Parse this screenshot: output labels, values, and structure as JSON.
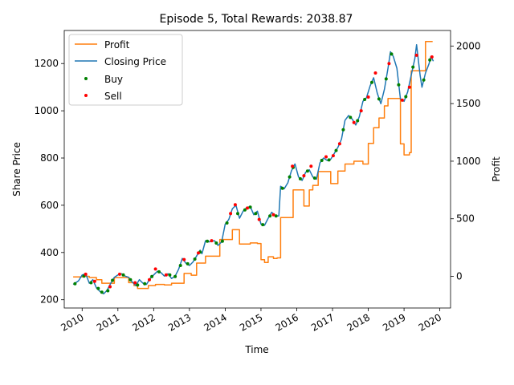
{
  "chart_data": {
    "type": "line",
    "title": "Episode 5, Total Rewards: 2038.87",
    "xlabel": "Time",
    "ylabel_left": "Share Price",
    "ylabel_right": "Profit",
    "xlim": [
      2009.5,
      2020.3
    ],
    "ylim_left": [
      165,
      1340
    ],
    "ylim_right": [
      -275,
      2135
    ],
    "x_ticks": [
      2010,
      2011,
      2012,
      2013,
      2014,
      2015,
      2016,
      2017,
      2018,
      2019,
      2020
    ],
    "x_tick_labels": [
      "2010",
      "2011",
      "2012",
      "2013",
      "2014",
      "2015",
      "2016",
      "2017",
      "2018",
      "2019",
      "2020"
    ],
    "y_ticks_left": [
      200,
      400,
      600,
      800,
      1000,
      1200
    ],
    "y_tick_labels_left": [
      "200",
      "400",
      "600",
      "800",
      "1000",
      "1200"
    ],
    "y_ticks_right": [
      0,
      500,
      1000,
      1500,
      2000
    ],
    "y_tick_labels_right": [
      "0",
      "500",
      "1000",
      "1500",
      "2000"
    ],
    "grid": false,
    "legend_position": "top-left",
    "series": [
      {
        "name": "Profit",
        "axis": "right",
        "color": "#ff7f0e",
        "step": true,
        "points": [
          [
            2009.75,
            -5
          ],
          [
            2010.0,
            0
          ],
          [
            2010.2,
            -10
          ],
          [
            2010.4,
            -30
          ],
          [
            2010.55,
            -60
          ],
          [
            2010.75,
            -60
          ],
          [
            2010.9,
            -10
          ],
          [
            2011.1,
            -10
          ],
          [
            2011.3,
            -55
          ],
          [
            2011.45,
            -80
          ],
          [
            2011.55,
            -105
          ],
          [
            2011.75,
            -105
          ],
          [
            2011.85,
            -80
          ],
          [
            2012.05,
            -70
          ],
          [
            2012.3,
            -75
          ],
          [
            2012.5,
            -60
          ],
          [
            2012.7,
            -60
          ],
          [
            2012.85,
            25
          ],
          [
            2013.05,
            10
          ],
          [
            2013.2,
            115
          ],
          [
            2013.35,
            115
          ],
          [
            2013.45,
            175
          ],
          [
            2013.7,
            175
          ],
          [
            2013.85,
            320
          ],
          [
            2014.05,
            320
          ],
          [
            2014.2,
            405
          ],
          [
            2014.3,
            405
          ],
          [
            2014.4,
            280
          ],
          [
            2014.6,
            280
          ],
          [
            2014.7,
            290
          ],
          [
            2014.9,
            285
          ],
          [
            2015.0,
            145
          ],
          [
            2015.1,
            120
          ],
          [
            2015.2,
            170
          ],
          [
            2015.35,
            155
          ],
          [
            2015.45,
            160
          ],
          [
            2015.55,
            510
          ],
          [
            2015.85,
            510
          ],
          [
            2015.9,
            750
          ],
          [
            2016.1,
            750
          ],
          [
            2016.2,
            610
          ],
          [
            2016.35,
            750
          ],
          [
            2016.45,
            790
          ],
          [
            2016.6,
            910
          ],
          [
            2016.85,
            910
          ],
          [
            2016.95,
            805
          ],
          [
            2017.15,
            915
          ],
          [
            2017.35,
            975
          ],
          [
            2017.6,
            1000
          ],
          [
            2017.85,
            975
          ],
          [
            2018.0,
            1155
          ],
          [
            2018.15,
            1290
          ],
          [
            2018.3,
            1375
          ],
          [
            2018.45,
            1480
          ],
          [
            2018.55,
            1545
          ],
          [
            2018.85,
            1545
          ],
          [
            2018.9,
            1150
          ],
          [
            2019.0,
            1055
          ],
          [
            2019.15,
            1075
          ],
          [
            2019.2,
            1785
          ],
          [
            2019.45,
            1785
          ],
          [
            2019.6,
            2038.87
          ],
          [
            2019.8,
            2038.87
          ]
        ]
      },
      {
        "name": "Closing Price",
        "axis": "left",
        "color": "#1f77b4",
        "points": [
          [
            2009.75,
            265
          ],
          [
            2009.9,
            280
          ],
          [
            2010.0,
            305
          ],
          [
            2010.1,
            310
          ],
          [
            2010.2,
            270
          ],
          [
            2010.3,
            285
          ],
          [
            2010.4,
            250
          ],
          [
            2010.5,
            235
          ],
          [
            2010.6,
            225
          ],
          [
            2010.7,
            240
          ],
          [
            2010.8,
            270
          ],
          [
            2010.9,
            295
          ],
          [
            2011.0,
            305
          ],
          [
            2011.1,
            310
          ],
          [
            2011.2,
            300
          ],
          [
            2011.3,
            295
          ],
          [
            2011.4,
            275
          ],
          [
            2011.5,
            260
          ],
          [
            2011.6,
            285
          ],
          [
            2011.7,
            270
          ],
          [
            2011.8,
            265
          ],
          [
            2011.9,
            290
          ],
          [
            2012.0,
            305
          ],
          [
            2012.1,
            320
          ],
          [
            2012.2,
            315
          ],
          [
            2012.3,
            300
          ],
          [
            2012.4,
            310
          ],
          [
            2012.5,
            290
          ],
          [
            2012.6,
            300
          ],
          [
            2012.7,
            330
          ],
          [
            2012.8,
            375
          ],
          [
            2012.9,
            355
          ],
          [
            2013.0,
            345
          ],
          [
            2013.1,
            360
          ],
          [
            2013.2,
            385
          ],
          [
            2013.3,
            410
          ],
          [
            2013.35,
            395
          ],
          [
            2013.45,
            450
          ],
          [
            2013.55,
            445
          ],
          [
            2013.7,
            450
          ],
          [
            2013.8,
            430
          ],
          [
            2013.9,
            445
          ],
          [
            2014.0,
            520
          ],
          [
            2014.1,
            540
          ],
          [
            2014.2,
            585
          ],
          [
            2014.3,
            600
          ],
          [
            2014.4,
            545
          ],
          [
            2014.5,
            575
          ],
          [
            2014.6,
            590
          ],
          [
            2014.7,
            595
          ],
          [
            2014.8,
            560
          ],
          [
            2014.9,
            575
          ],
          [
            2015.0,
            520
          ],
          [
            2015.1,
            515
          ],
          [
            2015.2,
            545
          ],
          [
            2015.3,
            570
          ],
          [
            2015.4,
            555
          ],
          [
            2015.5,
            555
          ],
          [
            2015.55,
            680
          ],
          [
            2015.65,
            670
          ],
          [
            2015.75,
            695
          ],
          [
            2015.85,
            745
          ],
          [
            2015.95,
            775
          ],
          [
            2016.05,
            720
          ],
          [
            2016.15,
            705
          ],
          [
            2016.25,
            740
          ],
          [
            2016.35,
            750
          ],
          [
            2016.45,
            720
          ],
          [
            2016.55,
            710
          ],
          [
            2016.65,
            780
          ],
          [
            2016.75,
            800
          ],
          [
            2016.85,
            790
          ],
          [
            2016.95,
            795
          ],
          [
            2017.05,
            820
          ],
          [
            2017.15,
            845
          ],
          [
            2017.25,
            880
          ],
          [
            2017.35,
            960
          ],
          [
            2017.45,
            980
          ],
          [
            2017.55,
            965
          ],
          [
            2017.65,
            940
          ],
          [
            2017.75,
            975
          ],
          [
            2017.85,
            1040
          ],
          [
            2017.95,
            1055
          ],
          [
            2018.05,
            1105
          ],
          [
            2018.15,
            1140
          ],
          [
            2018.25,
            1075
          ],
          [
            2018.35,
            1030
          ],
          [
            2018.45,
            1090
          ],
          [
            2018.55,
            1180
          ],
          [
            2018.62,
            1250
          ],
          [
            2018.7,
            1230
          ],
          [
            2018.8,
            1180
          ],
          [
            2018.9,
            1050
          ],
          [
            2019.0,
            1040
          ],
          [
            2019.1,
            1080
          ],
          [
            2019.2,
            1150
          ],
          [
            2019.3,
            1220
          ],
          [
            2019.35,
            1280
          ],
          [
            2019.45,
            1150
          ],
          [
            2019.5,
            1100
          ],
          [
            2019.6,
            1160
          ],
          [
            2019.7,
            1200
          ],
          [
            2019.75,
            1230
          ],
          [
            2019.82,
            1210
          ]
        ]
      },
      {
        "name": "Buy",
        "type": "scatter",
        "axis": "left",
        "color": "#008000",
        "points": [
          [
            2009.8,
            268
          ],
          [
            2010.05,
            300
          ],
          [
            2010.25,
            272
          ],
          [
            2010.45,
            248
          ],
          [
            2010.55,
            232
          ],
          [
            2010.72,
            238
          ],
          [
            2010.85,
            282
          ],
          [
            2011.15,
            305
          ],
          [
            2011.35,
            285
          ],
          [
            2011.55,
            262
          ],
          [
            2011.75,
            268
          ],
          [
            2011.95,
            298
          ],
          [
            2012.15,
            318
          ],
          [
            2012.45,
            305
          ],
          [
            2012.6,
            298
          ],
          [
            2012.75,
            345
          ],
          [
            2012.95,
            352
          ],
          [
            2013.15,
            372
          ],
          [
            2013.3,
            402
          ],
          [
            2013.5,
            448
          ],
          [
            2013.75,
            440
          ],
          [
            2013.92,
            448
          ],
          [
            2014.05,
            525
          ],
          [
            2014.35,
            565
          ],
          [
            2014.55,
            580
          ],
          [
            2014.7,
            592
          ],
          [
            2014.85,
            565
          ],
          [
            2015.05,
            518
          ],
          [
            2015.25,
            555
          ],
          [
            2015.42,
            555
          ],
          [
            2015.6,
            672
          ],
          [
            2015.8,
            720
          ],
          [
            2015.9,
            760
          ],
          [
            2016.1,
            712
          ],
          [
            2016.3,
            745
          ],
          [
            2016.5,
            715
          ],
          [
            2016.7,
            790
          ],
          [
            2016.9,
            792
          ],
          [
            2017.1,
            832
          ],
          [
            2017.3,
            920
          ],
          [
            2017.5,
            972
          ],
          [
            2017.7,
            958
          ],
          [
            2017.9,
            1048
          ],
          [
            2018.1,
            1120
          ],
          [
            2018.3,
            1050
          ],
          [
            2018.5,
            1135
          ],
          [
            2018.65,
            1240
          ],
          [
            2018.85,
            1110
          ],
          [
            2019.05,
            1060
          ],
          [
            2019.25,
            1185
          ],
          [
            2019.55,
            1130
          ],
          [
            2019.72,
            1215
          ]
        ]
      },
      {
        "name": "Sell",
        "type": "scatter",
        "axis": "left",
        "color": "#ff0000",
        "points": [
          [
            2010.1,
            308
          ],
          [
            2010.35,
            278
          ],
          [
            2010.78,
            255
          ],
          [
            2011.05,
            308
          ],
          [
            2011.48,
            272
          ],
          [
            2011.88,
            285
          ],
          [
            2012.05,
            330
          ],
          [
            2012.35,
            305
          ],
          [
            2012.85,
            370
          ],
          [
            2013.25,
            398
          ],
          [
            2013.62,
            450
          ],
          [
            2014.15,
            565
          ],
          [
            2014.28,
            602
          ],
          [
            2014.62,
            588
          ],
          [
            2014.95,
            540
          ],
          [
            2015.35,
            560
          ],
          [
            2015.88,
            765
          ],
          [
            2016.2,
            725
          ],
          [
            2016.4,
            765
          ],
          [
            2016.82,
            805
          ],
          [
            2017.02,
            810
          ],
          [
            2017.2,
            860
          ],
          [
            2017.6,
            950
          ],
          [
            2017.8,
            1000
          ],
          [
            2018.0,
            1058
          ],
          [
            2018.2,
            1160
          ],
          [
            2018.58,
            1200
          ],
          [
            2018.95,
            1045
          ],
          [
            2019.15,
            1100
          ],
          [
            2019.35,
            1235
          ],
          [
            2019.78,
            1228
          ]
        ]
      }
    ]
  }
}
